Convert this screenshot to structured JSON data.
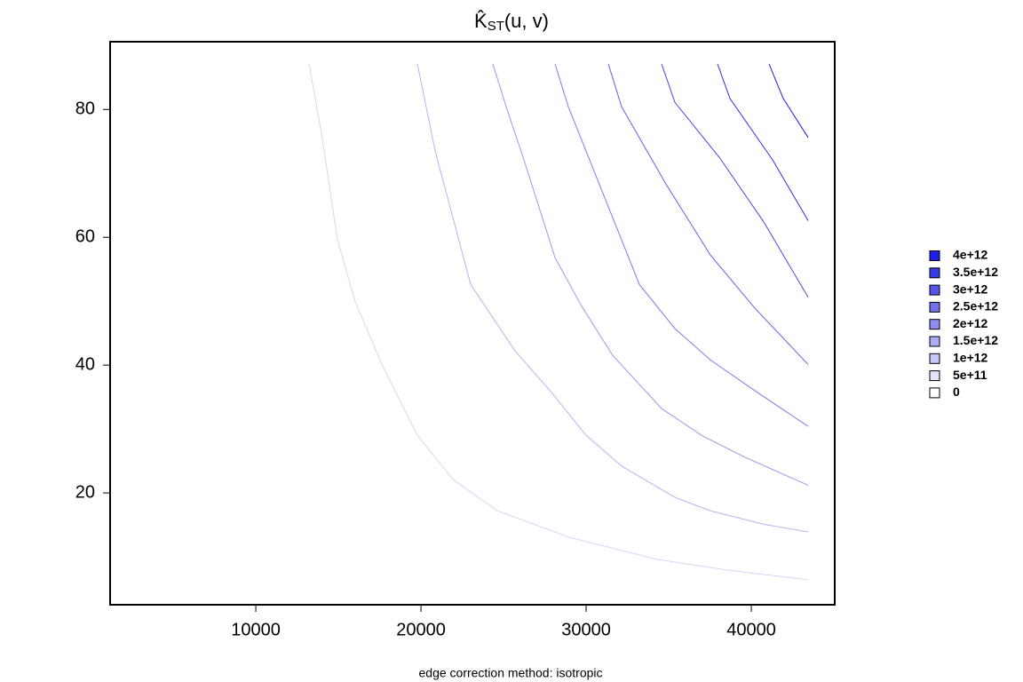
{
  "chart_data": {
    "type": "contour",
    "title": {
      "base": "K̂",
      "subscript": "ST",
      "rest": "(u, v)"
    },
    "caption": "edge correction method: isotropic",
    "xlim": [
      1180,
      45050
    ],
    "ylim": [
      2.5,
      90.6
    ],
    "xticks": [
      10000,
      20000,
      30000,
      40000
    ],
    "yticks": [
      20,
      40,
      60,
      80
    ],
    "legend": [
      {
        "value": 4000000000000.0,
        "label": "4e+12",
        "color": "#1e1ee6"
      },
      {
        "value": 3500000000000.0,
        "label": "3.5e+12",
        "color": "#3a3ae9"
      },
      {
        "value": 3000000000000.0,
        "label": "3e+12",
        "color": "#5656ec"
      },
      {
        "value": 2500000000000.0,
        "label": "2.5e+12",
        "color": "#7272f0"
      },
      {
        "value": 2000000000000.0,
        "label": "2e+12",
        "color": "#8e8ef2"
      },
      {
        "value": 1500000000000.0,
        "label": "1.5e+12",
        "color": "#ababf6"
      },
      {
        "value": 1000000000000.0,
        "label": "1e+12",
        "color": "#c7c7f9"
      },
      {
        "value": 500000000000.0,
        "label": "5e+11",
        "color": "#e3e3fc"
      },
      {
        "value": 0,
        "label": "0",
        "color": "#ffffff"
      }
    ],
    "series": [
      {
        "level": 500000000000.0,
        "color": "#d6d6f8",
        "x": [
          13226,
          13978,
          14946,
          16022,
          17634,
          19785,
          21935,
          24624,
          28925,
          34301,
          38602,
          43441
        ],
        "y": [
          87.1,
          76.25,
          59.6,
          49.9,
          40.1,
          29.0,
          22.1,
          17.2,
          13.1,
          9.6,
          7.9,
          6.4
        ]
      },
      {
        "level": 1000000000000.0,
        "color": "#b4b4f4",
        "x": [
          19785,
          20860,
          23011,
          25699,
          27849,
          30000,
          32151,
          35376,
          37527,
          40753,
          43441
        ],
        "y": [
          87.1,
          73.5,
          52.6,
          42.2,
          35.9,
          29.0,
          24.2,
          19.3,
          17.2,
          15.1,
          13.9
        ]
      },
      {
        "level": 1500000000000.0,
        "color": "#9898f0",
        "x": [
          24355,
          25161,
          26237,
          28118,
          29731,
          31613,
          34570,
          36989,
          39677,
          43441
        ],
        "y": [
          87.1,
          80.4,
          72.1,
          56.8,
          49.2,
          41.5,
          33.2,
          29.0,
          25.5,
          21.2
        ]
      },
      {
        "level": 2000000000000.0,
        "color": "#7c7cec",
        "x": [
          28118,
          28925,
          31075,
          33226,
          35376,
          37527,
          40215,
          43441
        ],
        "y": [
          87.1,
          80.4,
          66.5,
          52.6,
          45.7,
          40.8,
          36.0,
          30.4
        ]
      },
      {
        "level": 2500000000000.0,
        "color": "#6060e8",
        "x": [
          31344,
          32151,
          34839,
          37527,
          40215,
          43441
        ],
        "y": [
          87.1,
          80.4,
          68.3,
          57.2,
          48.9,
          40.1
        ]
      },
      {
        "level": 3000000000000.0,
        "color": "#4848e4",
        "x": [
          34570,
          35376,
          38065,
          40753,
          43441
        ],
        "y": [
          87.1,
          81.1,
          72.5,
          62.4,
          50.6
        ]
      },
      {
        "level": 3500000000000.0,
        "color": "#3030dc",
        "x": [
          37957,
          38710,
          41290,
          43441
        ],
        "y": [
          87.1,
          81.7,
          72.1,
          62.6
        ]
      },
      {
        "level": 4000000000000.0,
        "color": "#1c1cd4",
        "x": [
          41075,
          41935,
          43441
        ],
        "y": [
          87.1,
          81.7,
          75.6
        ]
      }
    ]
  }
}
